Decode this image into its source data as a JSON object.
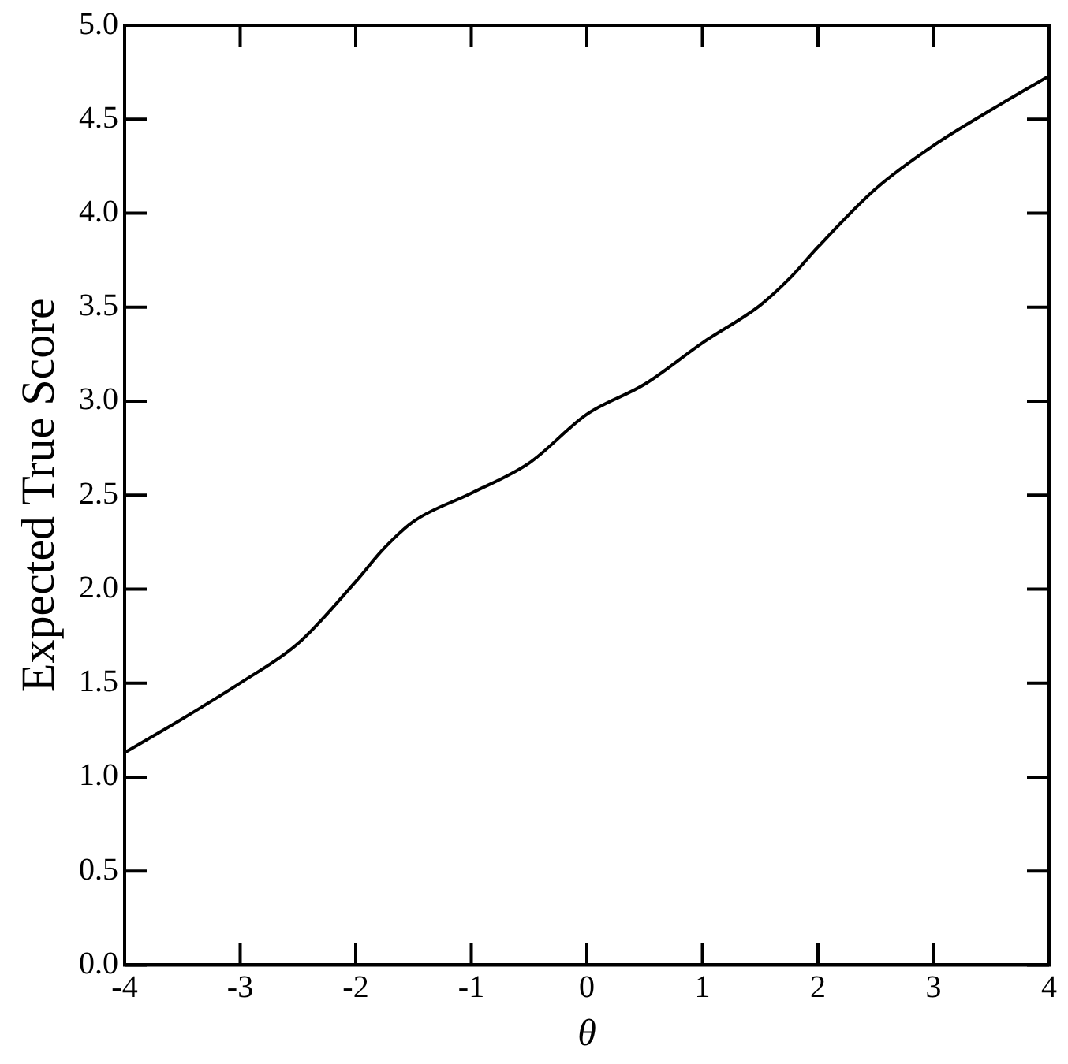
{
  "chart_data": {
    "type": "line",
    "xlabel": "θ",
    "ylabel": "Expected True Score",
    "x": [
      -4,
      -3.5,
      -3,
      -2.5,
      -2,
      -1.75,
      -1.5,
      -1,
      -0.5,
      0,
      0.5,
      1,
      1.5,
      1.75,
      2,
      2.5,
      3,
      3.5,
      4
    ],
    "series": [
      {
        "color": "#000000",
        "values": [
          1.13,
          1.31,
          1.5,
          1.71,
          2.04,
          2.22,
          2.36,
          2.51,
          2.67,
          2.93,
          3.09,
          3.31,
          3.51,
          3.65,
          3.82,
          4.13,
          4.36,
          4.55,
          4.73
        ]
      }
    ],
    "xlim": [
      -4,
      4
    ],
    "xticks": [
      -4,
      -3,
      -2,
      -1,
      0,
      1,
      2,
      3,
      4
    ],
    "ylim": [
      0,
      5
    ],
    "yticks": [
      {
        "value": 0,
        "label": "0.0"
      },
      0.5,
      {
        "value": 1,
        "label": "1.0"
      },
      1.5,
      {
        "value": 2,
        "label": "2.0"
      },
      2.5,
      {
        "value": 3,
        "label": "3.0"
      },
      3.5,
      {
        "value": 4,
        "label": "4.0"
      },
      4.5,
      {
        "value": 5,
        "label": "5.0"
      }
    ],
    "grid": false,
    "legend": false,
    "marker": "none",
    "line_style": "solid"
  }
}
